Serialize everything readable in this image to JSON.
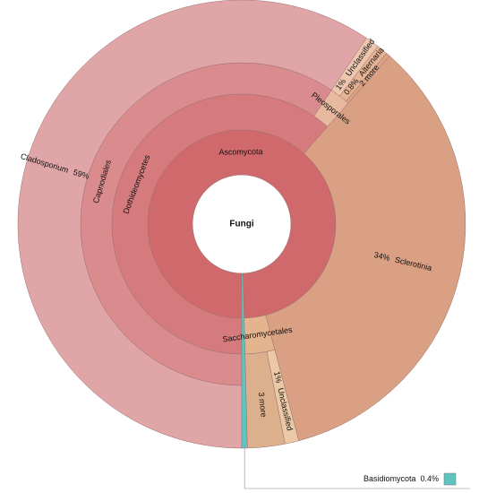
{
  "chart_data": {
    "type": "sunburst",
    "root": {
      "name": "Fungi",
      "value": 100,
      "color": "#ffffff",
      "children": [
        {
          "name": "Ascomycota",
          "value": 99.6,
          "color": "#d0696c",
          "children": [
            {
              "name": "Dothideomycetes",
              "value": 61.5,
              "color": "#d57a7d",
              "children": [
                {
                  "name": "Capnodiales",
                  "value": 59.4,
                  "color": "#da8b8e",
                  "children": [
                    {
                      "name": "Cladosporium",
                      "value": 59.4,
                      "value_label": "59%",
                      "color": "#e0a5a7"
                    }
                  ]
                },
                {
                  "name": "Pleosporales",
                  "value": 2.1,
                  "color": "#e8b89f",
                  "children": [
                    {
                      "name": "Unclassified",
                      "value": 1,
                      "value_label": "1%",
                      "color": "#edc6ae"
                    },
                    {
                      "name": "Alternaria",
                      "value": 0.8,
                      "value_label": "0.8%",
                      "color": "#e6b394"
                    },
                    {
                      "name": "2 more",
                      "value": 0.3,
                      "color": "#d9a283"
                    }
                  ]
                }
              ]
            },
            {
              "name": "Sclerotinia",
              "value": 34.4,
              "value_label": "34%",
              "color": "#d9a083"
            },
            {
              "name": "Saccharomycetales",
              "value": 3.7,
              "color": "#e3b48e",
              "children": [
                {
                  "name": "Unclassified",
                  "value": 1,
                  "value_label": "1%",
                  "color": "#ecc9a6"
                },
                {
                  "name": "3 more",
                  "value": 2.7,
                  "color": "#dcb08c"
                }
              ]
            }
          ]
        },
        {
          "name": "Basidiomycota",
          "value": 0.4,
          "value_label": "0.4%",
          "color": "#5fc3c0"
        }
      ]
    }
  }
}
